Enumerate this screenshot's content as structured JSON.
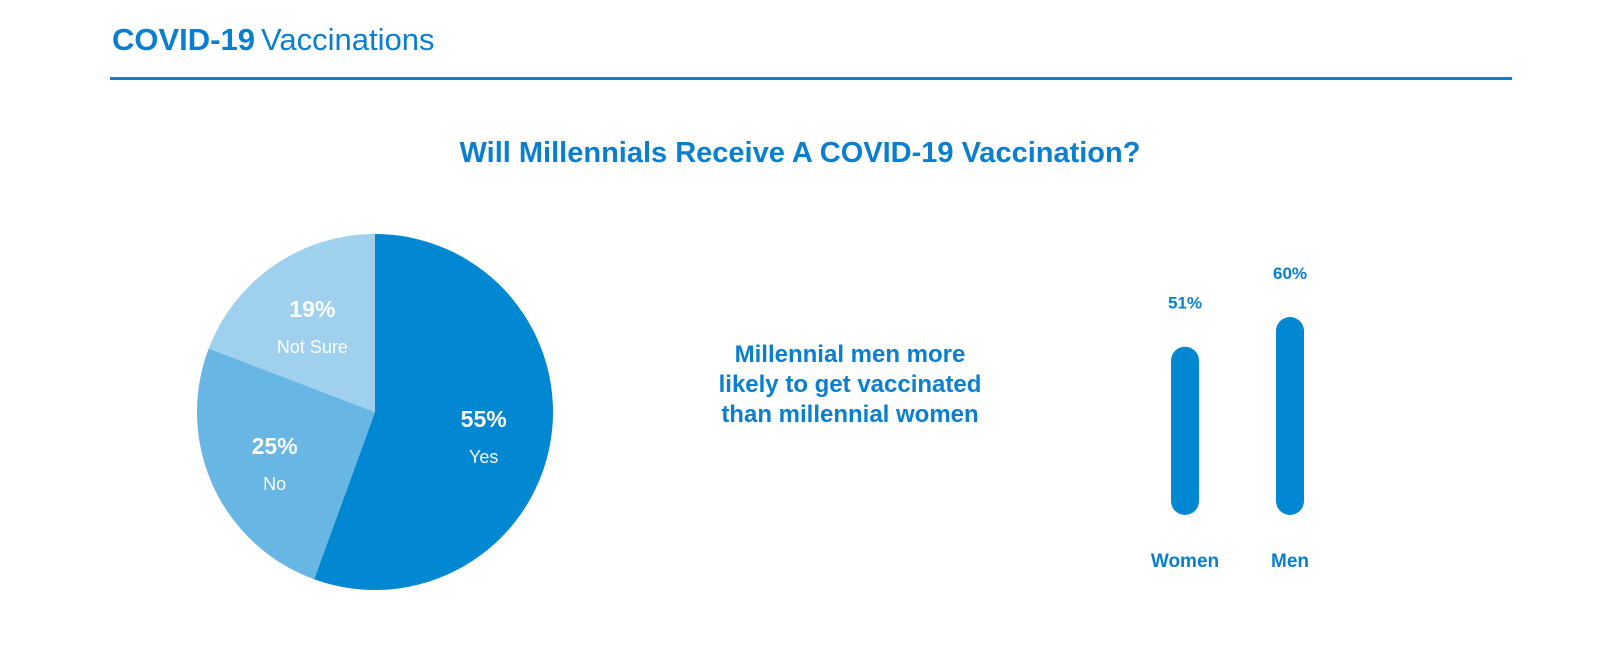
{
  "header": {
    "title_bold": "COVID-19",
    "title_light": "Vaccinations"
  },
  "colors": {
    "primary": "#0a7fcf",
    "yes": "#0287d2",
    "no": "#68b6e3",
    "not_sure": "#9fd1ee",
    "background": "#ffffff"
  },
  "callout": {
    "lines": [
      "Millennial men more",
      "likely to get vaccinated",
      "than millennial women"
    ]
  },
  "chart_data": [
    {
      "type": "pie",
      "title": "Will Millennials Receive A COVID-19 Vaccination?",
      "slices": [
        {
          "label": "Yes",
          "value": 55,
          "display": "55%",
          "color": "#0287d2"
        },
        {
          "label": "No",
          "value": 25,
          "display": "25%",
          "color": "#68b6e3"
        },
        {
          "label": "Not Sure",
          "value": 19,
          "display": "19%",
          "color": "#9fd1ee"
        }
      ]
    },
    {
      "type": "bar",
      "categories": [
        "Women",
        "Men"
      ],
      "values": [
        51,
        60
      ],
      "value_labels": [
        "51%",
        "60%"
      ],
      "color": "#0287d2"
    }
  ]
}
